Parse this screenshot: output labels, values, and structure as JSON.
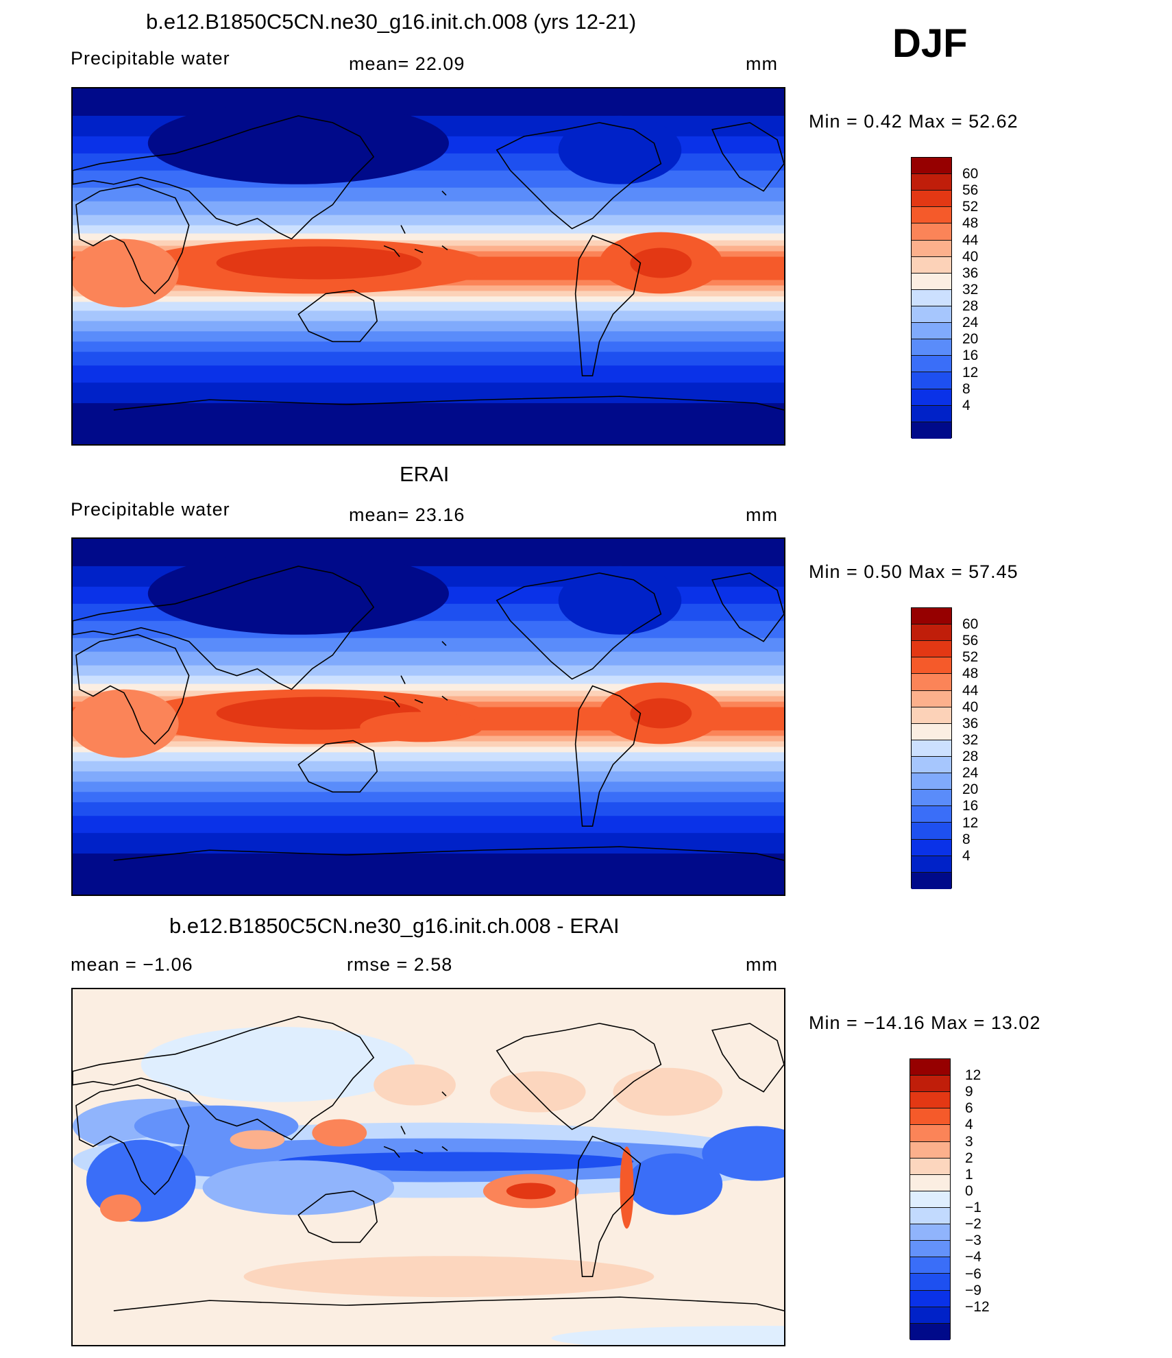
{
  "season": "DJF",
  "palettes": {
    "full": [
      "#000a8a",
      "#0022c8",
      "#0a32e8",
      "#1e50f0",
      "#3a6ef8",
      "#5a8cfa",
      "#80aafc",
      "#a6c6fd",
      "#cce0fe",
      "#fbeee2",
      "#fcd2b8",
      "#fcb08c",
      "#fb8458",
      "#f55a2a",
      "#e33814",
      "#c01e0a",
      "#960000"
    ],
    "diff": [
      "#000a8a",
      "#0022c8",
      "#0a32e8",
      "#1e50f0",
      "#3a6ef8",
      "#6492fa",
      "#90b4fc",
      "#c2dafe",
      "#dfeefe",
      "#fbeee2",
      "#fcd6be",
      "#fcb08c",
      "#fb8458",
      "#f55a2a",
      "#e33814",
      "#c01e0a",
      "#960000"
    ]
  },
  "panels": [
    {
      "title": "b.e12.B1850C5CN.ne30_g16.init.ch.008 (yrs 12-21)",
      "variable": "Precipitable  water",
      "stat_left": "",
      "stat_mid": "mean=   22.09",
      "units": "mm",
      "minmax": "Min  =     0.42  Max  =    52.62",
      "palette": "full",
      "ticks": [
        "60",
        "56",
        "52",
        "48",
        "44",
        "40",
        "36",
        "32",
        "28",
        "24",
        "20",
        "16",
        "12",
        "8",
        "4"
      ]
    },
    {
      "title": "ERAI",
      "variable": "Precipitable  water",
      "stat_left": "",
      "stat_mid": "mean=   23.16",
      "units": "mm",
      "minmax": "Min  =     0.50  Max  =    57.45",
      "palette": "full",
      "ticks": [
        "60",
        "56",
        "52",
        "48",
        "44",
        "40",
        "36",
        "32",
        "28",
        "24",
        "20",
        "16",
        "12",
        "8",
        "4"
      ]
    },
    {
      "title": "b.e12.B1850C5CN.ne30_g16.init.ch.008 - ERAI",
      "variable": "",
      "stat_left": "mean  =    −1.06",
      "stat_mid": "rmse  =     2.58",
      "units": "mm",
      "minmax": "Min  =  −14.16  Max  =    13.02",
      "palette": "diff",
      "ticks": [
        "12",
        "9",
        "6",
        "4",
        "3",
        "2",
        "1",
        "0",
        "−1",
        "−2",
        "−3",
        "−4",
        "−6",
        "−9",
        "−12"
      ]
    }
  ]
}
